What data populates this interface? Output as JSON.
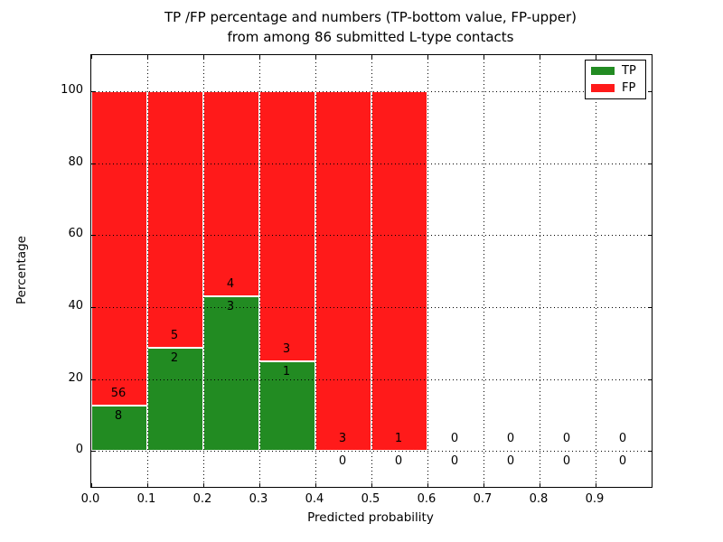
{
  "chart_data": {
    "type": "bar",
    "stacked": true,
    "title_line1": "TP /FP percentage and numbers (TP-bottom value, FP-upper)",
    "title_line2": "from among 86 submitted L-type contacts",
    "xlabel": "Predicted probability",
    "ylabel": "Percentage",
    "xlim": [
      0.0,
      1.0
    ],
    "ylim": [
      -10,
      110
    ],
    "grid": true,
    "xticks": [
      {
        "value": 0.0,
        "label": "0.0"
      },
      {
        "value": 0.1,
        "label": "0.1"
      },
      {
        "value": 0.2,
        "label": "0.2"
      },
      {
        "value": 0.3,
        "label": "0.3"
      },
      {
        "value": 0.4,
        "label": "0.4"
      },
      {
        "value": 0.5,
        "label": "0.5"
      },
      {
        "value": 0.6,
        "label": "0.6"
      },
      {
        "value": 0.7,
        "label": "0.7"
      },
      {
        "value": 0.8,
        "label": "0.8"
      },
      {
        "value": 0.9,
        "label": "0.9"
      }
    ],
    "yticks": [
      {
        "value": 0,
        "label": "0"
      },
      {
        "value": 20,
        "label": "20"
      },
      {
        "value": 40,
        "label": "40"
      },
      {
        "value": 60,
        "label": "60"
      },
      {
        "value": 80,
        "label": "80"
      },
      {
        "value": 100,
        "label": "100"
      }
    ],
    "legend": {
      "position": "upper right",
      "entries": [
        {
          "label": "TP",
          "color": "#228b22"
        },
        {
          "label": "FP",
          "color": "#ff1a1a"
        }
      ]
    },
    "bins": [
      {
        "x0": 0.0,
        "x1": 0.1,
        "tp": 8,
        "fp": 56,
        "tp_pct": 12.5,
        "stack_pct": 100
      },
      {
        "x0": 0.1,
        "x1": 0.2,
        "tp": 2,
        "fp": 5,
        "tp_pct": 28.57,
        "stack_pct": 100
      },
      {
        "x0": 0.2,
        "x1": 0.3,
        "tp": 3,
        "fp": 4,
        "tp_pct": 42.86,
        "stack_pct": 100
      },
      {
        "x0": 0.3,
        "x1": 0.4,
        "tp": 1,
        "fp": 3,
        "tp_pct": 25.0,
        "stack_pct": 100
      },
      {
        "x0": 0.4,
        "x1": 0.5,
        "tp": 0,
        "fp": 3,
        "tp_pct": 0,
        "stack_pct": 100
      },
      {
        "x0": 0.5,
        "x1": 0.6,
        "tp": 0,
        "fp": 1,
        "tp_pct": 0,
        "stack_pct": 100
      },
      {
        "x0": 0.6,
        "x1": 0.7,
        "tp": 0,
        "fp": 0,
        "tp_pct": 0,
        "stack_pct": 0
      },
      {
        "x0": 0.7,
        "x1": 0.8,
        "tp": 0,
        "fp": 0,
        "tp_pct": 0,
        "stack_pct": 0
      },
      {
        "x0": 0.8,
        "x1": 0.9,
        "tp": 0,
        "fp": 0,
        "tp_pct": 0,
        "stack_pct": 0
      },
      {
        "x0": 0.9,
        "x1": 1.0,
        "tp": 0,
        "fp": 0,
        "tp_pct": 0,
        "stack_pct": 0
      }
    ],
    "colors": {
      "tp_green": "#228b22",
      "fp_red": "#ff1a1a",
      "bar_edge": "#ffffff",
      "grid": "#000000",
      "text": "#000000",
      "background": "#ffffff"
    }
  }
}
